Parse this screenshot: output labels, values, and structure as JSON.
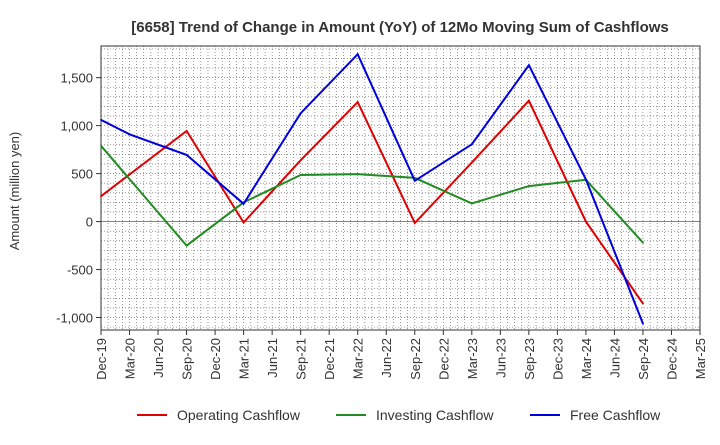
{
  "chart_data": {
    "type": "line",
    "title": "[6658]  Trend of Change in Amount (YoY) of 12Mo Moving Sum of Cashflows",
    "xlabel": "",
    "ylabel": "Amount (million yen)",
    "categories": [
      "Dec-19",
      "Mar-20",
      "Jun-20",
      "Sep-20",
      "Dec-20",
      "Mar-21",
      "Jun-21",
      "Sep-21",
      "Dec-21",
      "Mar-22",
      "Jun-22",
      "Sep-22",
      "Dec-22",
      "Mar-23",
      "Jun-23",
      "Sep-23",
      "Dec-23",
      "Mar-24",
      "Jun-24",
      "Sep-24",
      "Dec-24",
      "Mar-25"
    ],
    "ylim": [
      -1130,
      1830
    ],
    "yticks": [
      -1000,
      -500,
      0,
      500,
      1000,
      1500
    ],
    "ytick_labels": [
      "-1,000",
      "-500",
      "0",
      "500",
      "1,000",
      "1,500"
    ],
    "grid": true,
    "legend_position": "bottom",
    "series": [
      {
        "name": "Operating Cashflow",
        "color": "#e00000",
        "values": [
          265,
          null,
          null,
          945,
          null,
          -10,
          null,
          640,
          null,
          1245,
          null,
          -15,
          null,
          615,
          null,
          1260,
          null,
          0,
          null,
          -855,
          null,
          null
        ]
      },
      {
        "name": "Investing Cashflow",
        "color": "#228b22",
        "values": [
          790,
          null,
          null,
          -250,
          null,
          200,
          null,
          485,
          null,
          495,
          null,
          455,
          null,
          190,
          null,
          370,
          null,
          435,
          null,
          -220,
          null,
          null
        ]
      },
      {
        "name": "Free Cashflow",
        "color": "#0000dd",
        "values": [
          1060,
          910,
          null,
          695,
          null,
          185,
          null,
          1130,
          null,
          1745,
          null,
          425,
          null,
          805,
          null,
          1630,
          null,
          440,
          null,
          -1065,
          null,
          null
        ]
      }
    ]
  }
}
